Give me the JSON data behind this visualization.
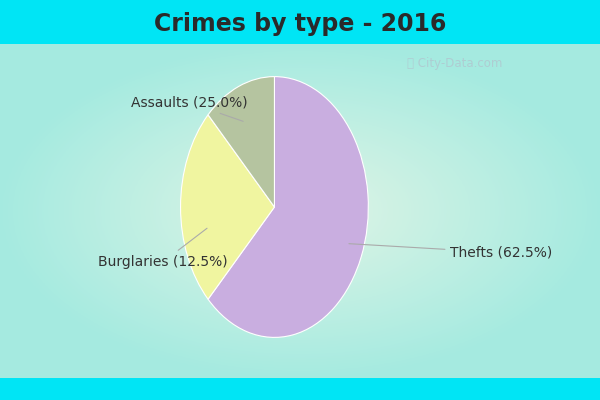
{
  "title": "Crimes by type - 2016",
  "slices": [
    {
      "label": "Thefts (62.5%)",
      "value": 62.5,
      "color": "#c9aee0"
    },
    {
      "label": "Assaults (25.0%)",
      "value": 25.0,
      "color": "#f0f5a0"
    },
    {
      "label": "Burglaries (12.5%)",
      "value": 12.5,
      "color": "#b5c4a0"
    }
  ],
  "bg_color_top": "#00e5f5",
  "bg_color_main_center": "#e8f5ee",
  "title_fontsize": 17,
  "label_fontsize": 10,
  "watermark": "City-Data.com",
  "startangle": 90,
  "title_color": "#2a2a2a"
}
